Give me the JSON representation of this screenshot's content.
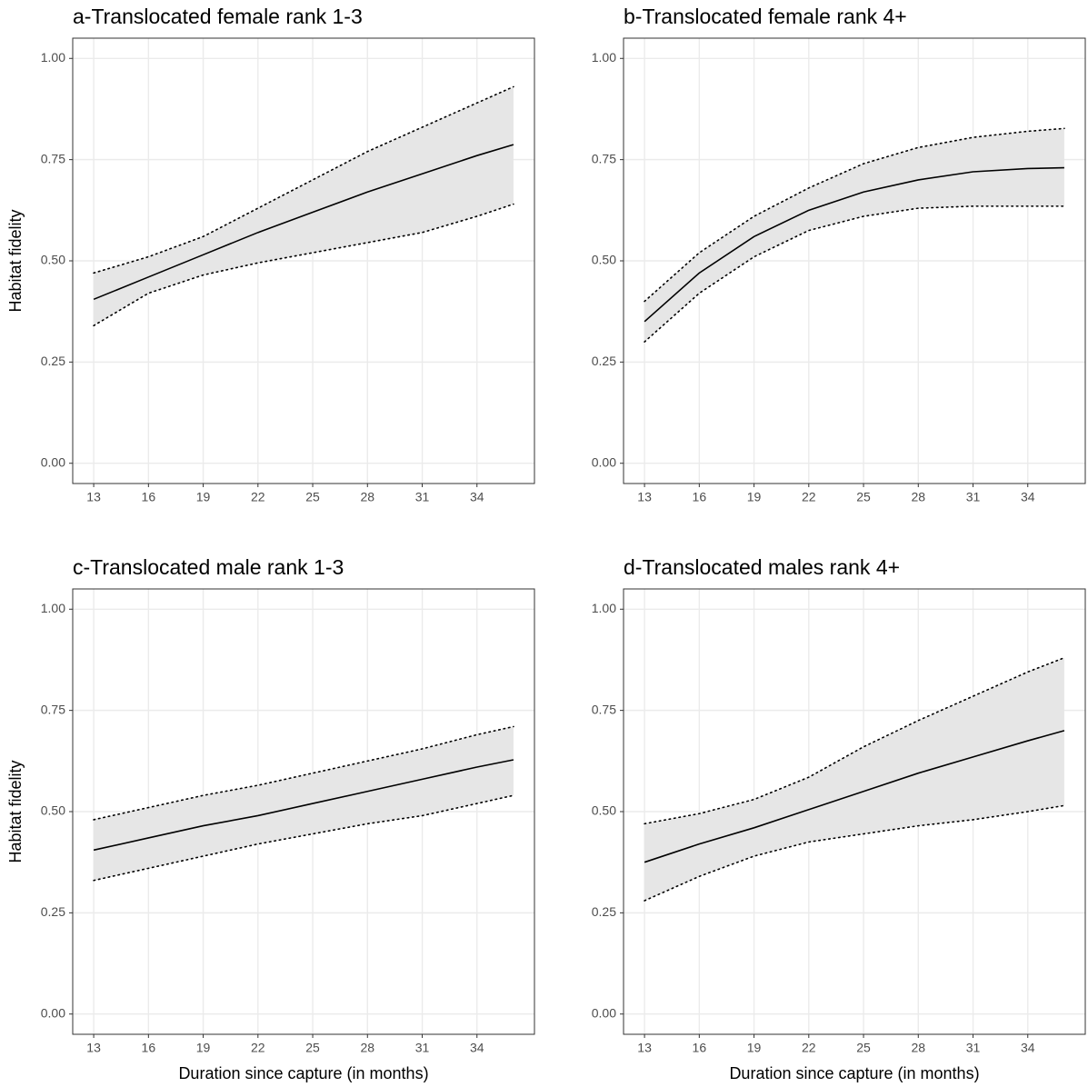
{
  "chart_data": [
    {
      "type": "line",
      "title": "a-Translocated female rank 1-3",
      "ylabel": "Habitat fidelity",
      "x": [
        13,
        16,
        19,
        22,
        25,
        28,
        31,
        34,
        36
      ],
      "values": [
        0.405,
        0.46,
        0.515,
        0.57,
        0.62,
        0.67,
        0.715,
        0.76,
        0.787
      ],
      "upper": [
        0.47,
        0.51,
        0.56,
        0.63,
        0.7,
        0.77,
        0.83,
        0.89,
        0.93
      ],
      "lower": [
        0.34,
        0.42,
        0.465,
        0.495,
        0.52,
        0.545,
        0.57,
        0.61,
        0.64
      ],
      "color": "#000000",
      "band_color": "#e6e6e6",
      "xlim": [
        11.85,
        37.15
      ],
      "xticks": [
        13,
        16,
        19,
        22,
        25,
        28,
        31,
        34
      ],
      "ylim": [
        -0.05,
        1.05
      ],
      "yticks": [
        {
          "value": 0,
          "label": "0.00"
        },
        {
          "value": 0.25,
          "label": "0.25"
        },
        {
          "value": 0.5,
          "label": "0.50"
        },
        {
          "value": 0.75,
          "label": "0.75"
        },
        {
          "value": 1,
          "label": "1.00"
        }
      ],
      "grid": true
    },
    {
      "type": "line",
      "title": "b-Translocated female rank 4+",
      "x": [
        13,
        16,
        19,
        22,
        25,
        28,
        31,
        34,
        36
      ],
      "values": [
        0.35,
        0.47,
        0.56,
        0.625,
        0.67,
        0.7,
        0.72,
        0.728,
        0.73
      ],
      "upper": [
        0.4,
        0.52,
        0.61,
        0.68,
        0.74,
        0.78,
        0.805,
        0.82,
        0.827
      ],
      "lower": [
        0.3,
        0.42,
        0.51,
        0.575,
        0.61,
        0.63,
        0.635,
        0.635,
        0.635
      ],
      "color": "#000000",
      "band_color": "#e6e6e6",
      "xlim": [
        11.85,
        37.15
      ],
      "xticks": [
        13,
        16,
        19,
        22,
        25,
        28,
        31,
        34
      ],
      "ylim": [
        -0.05,
        1.05
      ],
      "yticks": [
        {
          "value": 0,
          "label": "0.00"
        },
        {
          "value": 0.25,
          "label": "0.25"
        },
        {
          "value": 0.5,
          "label": "0.50"
        },
        {
          "value": 0.75,
          "label": "0.75"
        },
        {
          "value": 1,
          "label": "1.00"
        }
      ],
      "grid": true
    },
    {
      "type": "line",
      "title": "c-Translocated male rank 1-3",
      "ylabel": "Habitat fidelity",
      "xlabel": "Duration since capture (in months)",
      "x": [
        13,
        16,
        19,
        22,
        25,
        28,
        31,
        34,
        36
      ],
      "values": [
        0.405,
        0.435,
        0.465,
        0.49,
        0.52,
        0.55,
        0.58,
        0.61,
        0.628
      ],
      "upper": [
        0.48,
        0.51,
        0.54,
        0.565,
        0.595,
        0.625,
        0.655,
        0.69,
        0.71
      ],
      "lower": [
        0.33,
        0.36,
        0.39,
        0.42,
        0.445,
        0.47,
        0.49,
        0.52,
        0.54
      ],
      "color": "#000000",
      "band_color": "#e6e6e6",
      "xlim": [
        11.85,
        37.15
      ],
      "xticks": [
        13,
        16,
        19,
        22,
        25,
        28,
        31,
        34
      ],
      "ylim": [
        -0.05,
        1.05
      ],
      "yticks": [
        {
          "value": 0,
          "label": "0.00"
        },
        {
          "value": 0.25,
          "label": "0.25"
        },
        {
          "value": 0.5,
          "label": "0.50"
        },
        {
          "value": 0.75,
          "label": "0.75"
        },
        {
          "value": 1,
          "label": "1.00"
        }
      ],
      "grid": true
    },
    {
      "type": "line",
      "title": "d-Translocated males rank 4+",
      "xlabel": "Duration since capture (in months)",
      "x": [
        13,
        16,
        19,
        22,
        25,
        28,
        31,
        34,
        36
      ],
      "values": [
        0.375,
        0.42,
        0.46,
        0.505,
        0.55,
        0.595,
        0.635,
        0.675,
        0.7
      ],
      "upper": [
        0.47,
        0.495,
        0.53,
        0.585,
        0.66,
        0.725,
        0.785,
        0.845,
        0.88
      ],
      "lower": [
        0.28,
        0.34,
        0.39,
        0.425,
        0.445,
        0.465,
        0.48,
        0.5,
        0.515
      ],
      "color": "#000000",
      "band_color": "#e6e6e6",
      "xlim": [
        11.85,
        37.15
      ],
      "xticks": [
        13,
        16,
        19,
        22,
        25,
        28,
        31,
        34
      ],
      "ylim": [
        -0.05,
        1.05
      ],
      "yticks": [
        {
          "value": 0,
          "label": "0.00"
        },
        {
          "value": 0.25,
          "label": "0.25"
        },
        {
          "value": 0.5,
          "label": "0.50"
        },
        {
          "value": 0.75,
          "label": "0.75"
        },
        {
          "value": 1,
          "label": "1.00"
        }
      ],
      "grid": true
    }
  ]
}
